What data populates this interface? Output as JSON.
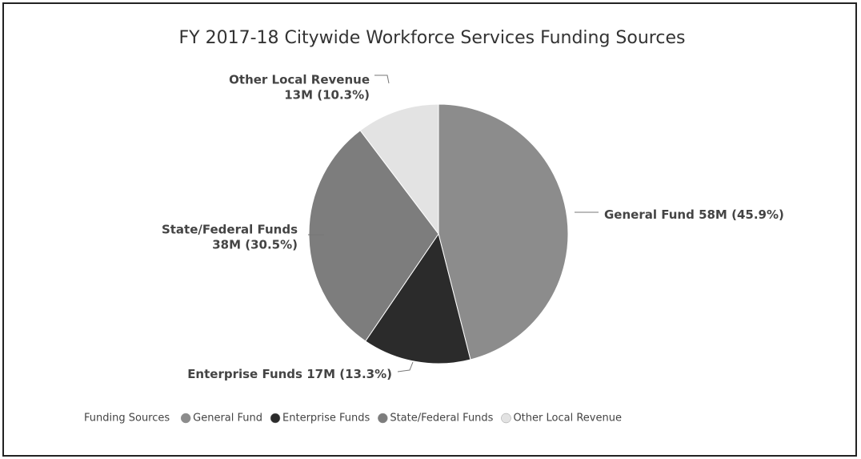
{
  "chart_data": {
    "type": "pie",
    "title": "FY 2017-18 Citywide Workforce Services Funding Sources",
    "legend_title": "Funding Sources",
    "categories": [
      "General Fund",
      "Enterprise Funds",
      "State/Federal Funds",
      "Other Local Revenue"
    ],
    "values": [
      58,
      17,
      38,
      13
    ],
    "value_labels": [
      "58M (45.9%)",
      "17M (13.3%)",
      "38M (30.5%)",
      "13M (10.3%)"
    ],
    "colors": [
      "#8c8c8c",
      "#2b2b2b",
      "#7d7d7d",
      "#e3e3e3"
    ],
    "legend": "bottom"
  }
}
